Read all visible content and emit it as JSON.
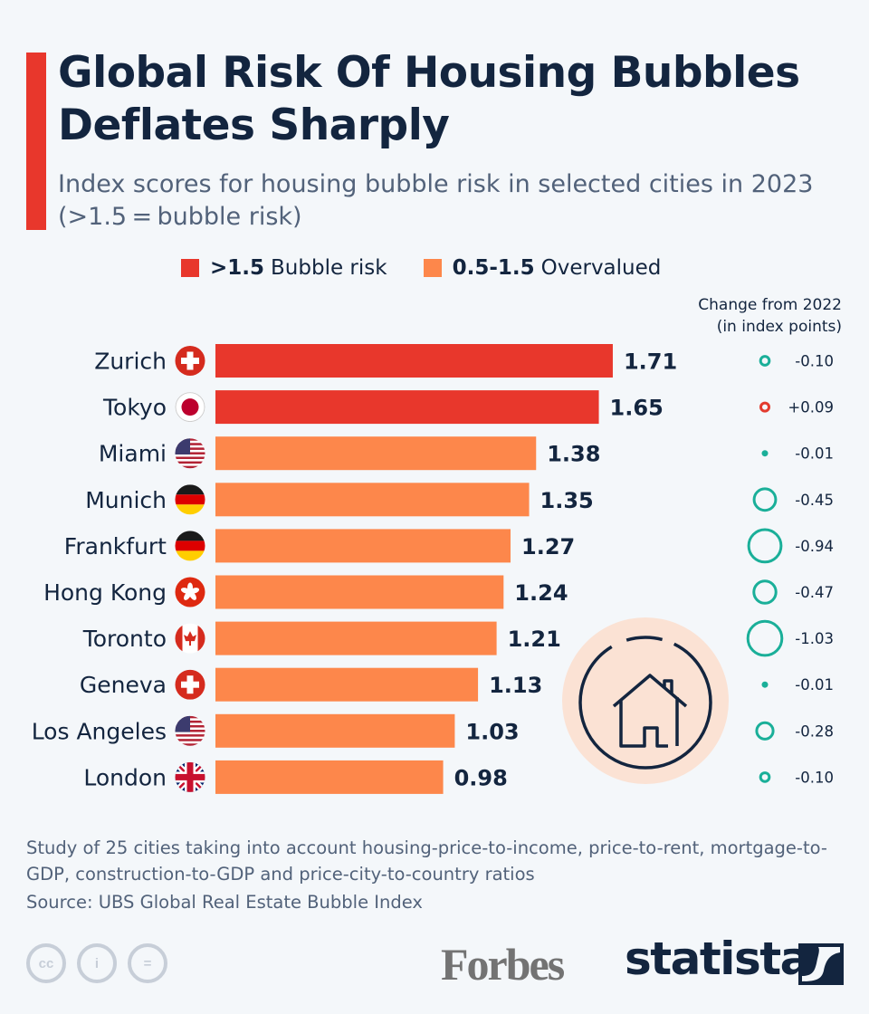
{
  "header": {
    "title": "Global Risk Of Housing Bubbles Deflates Sharply",
    "subtitle": "Index scores for housing bubble risk in selected cities in 2023 (>1.5 = bubble risk)"
  },
  "legend": [
    {
      "bold": ">1.5",
      "label": "Bubble risk",
      "color": "#e8372c"
    },
    {
      "bold": "0.5-1.5",
      "label": "Overvalued",
      "color": "#fd874b"
    }
  ],
  "change_header": {
    "line1": "Change from 2022",
    "line2": "(in index points)"
  },
  "colors": {
    "bubble": "#e8372c",
    "overvalued": "#fd874b",
    "decrease": "#1aaf99",
    "increase": "#e33b2e",
    "text": "#13253f",
    "house_bg": "#fbe2d4"
  },
  "chart_data": {
    "type": "bar",
    "orientation": "horizontal",
    "title": "Global Risk Of Housing Bubbles Deflates Sharply",
    "subtitle": "Index scores for housing bubble risk in selected cities in 2023 (>1.5 = bubble risk)",
    "categories": [
      "Zurich",
      "Tokyo",
      "Miami",
      "Munich",
      "Frankfurt",
      "Hong Kong",
      "Toronto",
      "Geneva",
      "Los Angeles",
      "London"
    ],
    "flags": [
      "switzerland",
      "japan",
      "usa",
      "germany",
      "germany",
      "hong-kong",
      "canada",
      "switzerland",
      "usa",
      "uk"
    ],
    "series": [
      {
        "name": "Index score 2023",
        "values": [
          1.71,
          1.65,
          1.38,
          1.35,
          1.27,
          1.24,
          1.21,
          1.13,
          1.03,
          0.98
        ]
      },
      {
        "name": "Change from 2022 (in index points)",
        "values": [
          -0.1,
          0.09,
          -0.01,
          -0.45,
          -0.94,
          -0.47,
          -1.03,
          -0.01,
          -0.28,
          -0.1
        ],
        "labels": [
          "-0.10",
          "+0.09",
          "-0.01",
          "-0.45",
          "-0.94",
          "-0.47",
          "-1.03",
          "-0.01",
          "-0.28",
          "-0.10"
        ]
      }
    ],
    "value_labels": [
      "1.71",
      "1.65",
      "1.38",
      "1.35",
      "1.27",
      "1.24",
      "1.21",
      "1.13",
      "1.03",
      "0.98"
    ],
    "threshold": 1.5,
    "xlabel": "",
    "ylabel": "",
    "xlim": [
      0,
      1.8
    ],
    "grid": false,
    "legend_position": "top"
  },
  "footer": {
    "note": "Study of 25 cities taking into account housing-price-to-income, price-to-rent, mortgage-to-GDP, construction-to-GDP and price-city-to-country ratios",
    "source": "Source: UBS Global Real Estate Bubble Index",
    "cc_icons": [
      "cc",
      "i",
      "="
    ],
    "forbes": "Forbes",
    "statista": "statista"
  }
}
